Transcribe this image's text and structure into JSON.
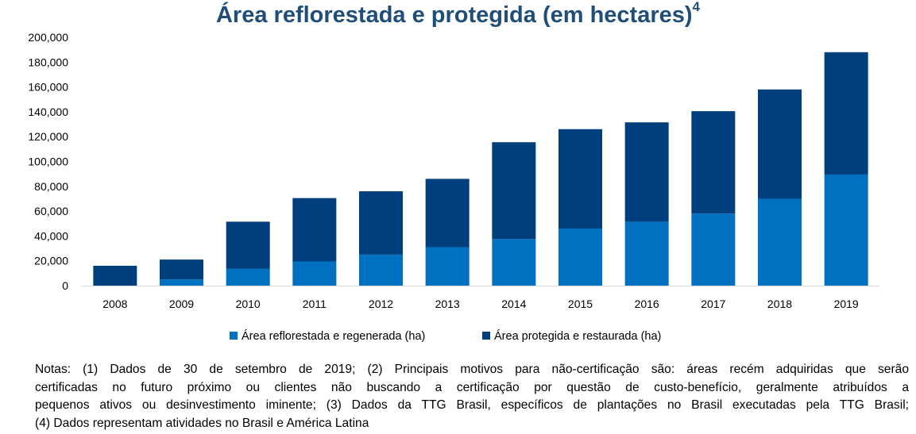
{
  "chart_data": {
    "type": "bar",
    "stacked": true,
    "title": "Área reflorestada e protegida (em hectares)",
    "title_superscript": "4",
    "categories": [
      "2008",
      "2009",
      "2010",
      "2011",
      "2012",
      "2013",
      "2014",
      "2015",
      "2016",
      "2017",
      "2018",
      "2019"
    ],
    "series": [
      {
        "name": "Área reflorestada e regenerada (ha)",
        "color": "#0070c0",
        "values": [
          0,
          5000,
          13500,
          19500,
          25000,
          31000,
          37500,
          46000,
          51500,
          58000,
          70000,
          89500
        ]
      },
      {
        "name": "Área protegida e restaurada (ha)",
        "color": "#003f7d",
        "values": [
          16000,
          16000,
          38000,
          51000,
          51000,
          55000,
          78000,
          80000,
          80000,
          82500,
          88000,
          98500
        ]
      }
    ],
    "ylim": [
      0,
      200000
    ],
    "yticks": [
      "0",
      "20,000",
      "40,000",
      "60,000",
      "80,000",
      "100,000",
      "120,000",
      "140,000",
      "160,000",
      "180,000",
      "200,000"
    ],
    "xlabel": "",
    "ylabel": "",
    "grid": false,
    "legend_position": "bottom"
  },
  "notes": {
    "lines": [
      "Notas: (1) Dados de 30 de setembro de 2019; (2) Principais motivos para não-certificação são: áreas recém adquiridas que serão",
      "certificadas no futuro próximo ou clientes não buscando a certificação por questão de custo-benefício, geralmente atribuídos a",
      "pequenos ativos ou desinvestimento iminente; (3) Dados da TTG Brasil, específicos de plantações no Brasil executadas pela TTG Brasil;",
      "(4) Dados representam atividades no Brasil e América Latina"
    ]
  }
}
